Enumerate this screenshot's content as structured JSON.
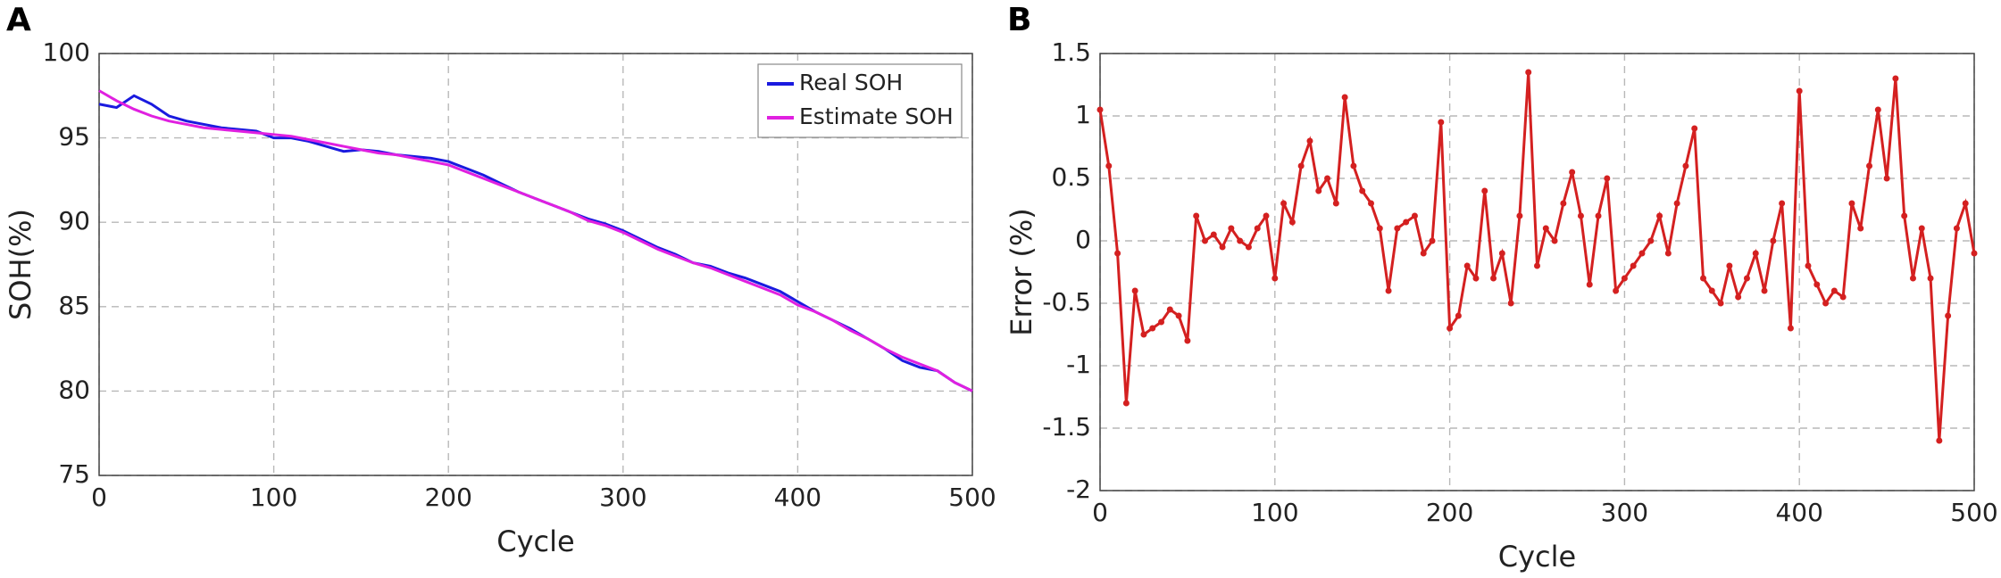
{
  "chart_data": [
    {
      "type": "line",
      "label": "A",
      "xlabel": "Cycle",
      "ylabel": "SOH(%)",
      "xlim": [
        0,
        500
      ],
      "xticks": [
        0,
        100,
        200,
        300,
        400,
        500
      ],
      "ylim": [
        75,
        100
      ],
      "yticks": [
        75,
        80,
        85,
        90,
        95,
        100
      ],
      "grid": true,
      "legend": "northeast",
      "markers": false,
      "x": [
        0,
        10,
        20,
        30,
        40,
        50,
        60,
        70,
        80,
        90,
        100,
        110,
        120,
        130,
        140,
        150,
        160,
        170,
        180,
        190,
        200,
        210,
        220,
        230,
        240,
        250,
        260,
        270,
        280,
        290,
        300,
        310,
        320,
        330,
        340,
        350,
        360,
        370,
        380,
        390,
        400,
        410,
        420,
        430,
        440,
        450,
        460,
        470,
        480,
        490,
        500
      ],
      "series": [
        {
          "name": "Real SOH",
          "color": "#1a1adf",
          "values": [
            97,
            96.8,
            97.5,
            97,
            96.3,
            96,
            95.8,
            95.6,
            95.5,
            95.4,
            95,
            95,
            94.8,
            94.5,
            94.2,
            94.3,
            94.2,
            94,
            93.9,
            93.8,
            93.6,
            93.2,
            92.8,
            92.3,
            91.8,
            91.4,
            91,
            90.6,
            90.2,
            89.9,
            89.5,
            89,
            88.5,
            88.1,
            87.6,
            87.4,
            87,
            86.7,
            86.3,
            85.9,
            85.3,
            84.7,
            84.2,
            83.7,
            83.1,
            82.5,
            81.8,
            81.4,
            81.2,
            80.5,
            80
          ]
        },
        {
          "name": "Estimate SOH",
          "color": "#e020e0",
          "values": [
            97.8,
            97.2,
            96.7,
            96.3,
            96,
            95.8,
            95.6,
            95.5,
            95.4,
            95.3,
            95.2,
            95.1,
            94.9,
            94.7,
            94.5,
            94.3,
            94.1,
            94,
            93.8,
            93.6,
            93.4,
            93,
            92.6,
            92.2,
            91.8,
            91.4,
            91,
            90.6,
            90.1,
            89.8,
            89.4,
            88.9,
            88.4,
            88,
            87.6,
            87.3,
            86.9,
            86.5,
            86.1,
            85.7,
            85.1,
            84.7,
            84.2,
            83.6,
            83.1,
            82.5,
            82,
            81.6,
            81.2,
            80.5,
            80
          ]
        }
      ]
    },
    {
      "type": "line",
      "label": "B",
      "xlabel": "Cycle",
      "ylabel": "Error (%)",
      "xlim": [
        0,
        500
      ],
      "xticks": [
        0,
        100,
        200,
        300,
        400,
        500
      ],
      "ylim": [
        -2,
        1.5
      ],
      "yticks": [
        -2,
        -1.5,
        -1,
        -0.5,
        0,
        0.5,
        1,
        1.5
      ],
      "grid": true,
      "markers": true,
      "x": [
        0,
        5,
        10,
        15,
        20,
        25,
        30,
        35,
        40,
        45,
        50,
        55,
        60,
        65,
        70,
        75,
        80,
        85,
        90,
        95,
        100,
        105,
        110,
        115,
        120,
        125,
        130,
        135,
        140,
        145,
        150,
        155,
        160,
        165,
        170,
        175,
        180,
        185,
        190,
        195,
        200,
        205,
        210,
        215,
        220,
        225,
        230,
        235,
        240,
        245,
        250,
        255,
        260,
        265,
        270,
        275,
        280,
        285,
        290,
        295,
        300,
        305,
        310,
        315,
        320,
        325,
        330,
        335,
        340,
        345,
        350,
        355,
        360,
        365,
        370,
        375,
        380,
        385,
        390,
        395,
        400,
        405,
        410,
        415,
        420,
        425,
        430,
        435,
        440,
        445,
        450,
        455,
        460,
        465,
        470,
        475,
        480,
        485,
        490,
        495,
        500
      ],
      "series": [
        {
          "color": "#d42020",
          "values": [
            1.05,
            0.6,
            -0.1,
            -1.3,
            -0.4,
            -0.75,
            -0.7,
            -0.65,
            -0.55,
            -0.6,
            -0.8,
            0.2,
            0,
            0.05,
            -0.05,
            0.1,
            0,
            -0.05,
            0.1,
            0.2,
            -0.3,
            0.3,
            0.15,
            0.6,
            0.8,
            0.4,
            0.5,
            0.3,
            1.15,
            0.6,
            0.4,
            0.3,
            0.1,
            -0.4,
            0.1,
            0.15,
            0.2,
            -0.1,
            0,
            0.95,
            -0.7,
            -0.6,
            -0.2,
            -0.3,
            0.4,
            -0.3,
            -0.1,
            -0.5,
            0.2,
            1.35,
            -0.2,
            0.1,
            0,
            0.3,
            0.55,
            0.2,
            -0.35,
            0.2,
            0.5,
            -0.4,
            -0.3,
            -0.2,
            -0.1,
            0,
            0.2,
            -0.1,
            0.3,
            0.6,
            0.9,
            -0.3,
            -0.4,
            -0.5,
            -0.2,
            -0.45,
            -0.3,
            -0.1,
            -0.4,
            0,
            0.3,
            -0.7,
            1.2,
            -0.2,
            -0.35,
            -0.5,
            -0.4,
            -0.45,
            0.3,
            0.1,
            0.6,
            1.05,
            0.5,
            1.3,
            0.2,
            -0.3,
            0.1,
            -0.3,
            -1.6,
            -0.6,
            0.1,
            0.3,
            -0.1
          ]
        }
      ]
    }
  ]
}
